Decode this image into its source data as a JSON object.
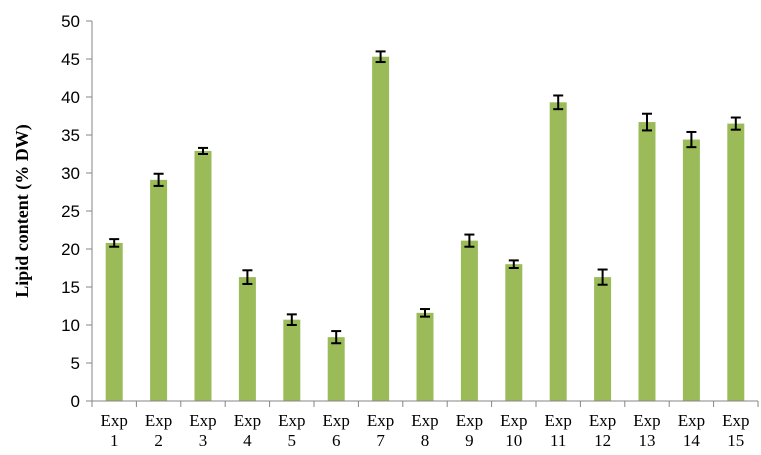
{
  "chart_data": {
    "type": "bar",
    "ylabel": "Lipid content (% DW)",
    "xlabel": "",
    "ylim": [
      0,
      50
    ],
    "ytick_step": 5,
    "yticks": [
      "0",
      "5",
      "10",
      "15",
      "20",
      "25",
      "30",
      "35",
      "40",
      "45",
      "50"
    ],
    "grid": false,
    "legend": "none",
    "bar_color": "#9bbb59",
    "error_bar_color": "#000000",
    "categories": [
      {
        "line1": "Exp",
        "line2": "1"
      },
      {
        "line1": "Exp",
        "line2": "2"
      },
      {
        "line1": "Exp",
        "line2": "3"
      },
      {
        "line1": "Exp",
        "line2": "4"
      },
      {
        "line1": "Exp",
        "line2": "5"
      },
      {
        "line1": "Exp",
        "line2": "6"
      },
      {
        "line1": "Exp",
        "line2": "7"
      },
      {
        "line1": "Exp",
        "line2": "8"
      },
      {
        "line1": "Exp",
        "line2": "9"
      },
      {
        "line1": "Exp",
        "line2": "10"
      },
      {
        "line1": "Exp",
        "line2": "11"
      },
      {
        "line1": "Exp",
        "line2": "12"
      },
      {
        "line1": "Exp",
        "line2": "13"
      },
      {
        "line1": "Exp",
        "line2": "14"
      },
      {
        "line1": "Exp",
        "line2": "15"
      }
    ],
    "values": [
      20.8,
      29.1,
      32.9,
      16.3,
      10.7,
      8.4,
      45.3,
      11.6,
      21.1,
      18.0,
      39.3,
      16.3,
      36.7,
      34.4,
      36.5
    ],
    "errors": [
      0.5,
      0.8,
      0.4,
      0.9,
      0.7,
      0.8,
      0.7,
      0.5,
      0.8,
      0.5,
      0.9,
      1.0,
      1.1,
      1.0,
      0.8
    ]
  }
}
